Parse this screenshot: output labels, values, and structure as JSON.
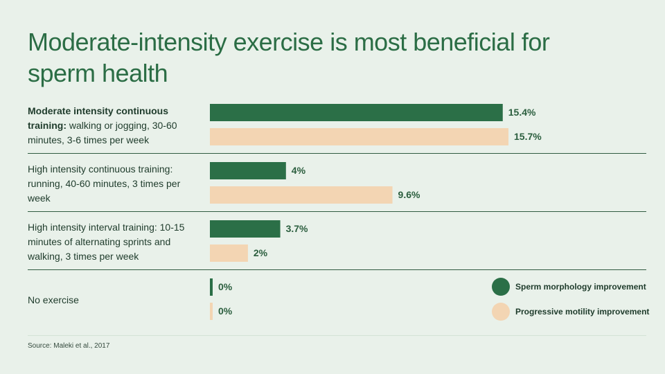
{
  "title": "Moderate-intensity exercise is most beneficial for sperm health",
  "rows": [
    {
      "label_bold": "Moderate intensity continuous training:",
      "label_rest": " walking or jogging, 30-60 minutes, 3-6 times per week"
    },
    {
      "label_bold": "",
      "label_rest": "High intensity continuous training: running, 40-60 minutes, 3 times per week"
    },
    {
      "label_bold": "",
      "label_rest": "High intensity interval training: 10-15 minutes of alternating sprints and walking, 3 times per week"
    },
    {
      "label_bold": "",
      "label_rest": "No exercise"
    }
  ],
  "legend": [
    {
      "label": "Sperm morphology improvement",
      "color": "#2b6f47"
    },
    {
      "label": "Progressive motility improvement",
      "color": "#f3d5b3"
    }
  ],
  "source": "Source: Maleki et al., 2017",
  "chart_data": {
    "type": "bar",
    "orientation": "horizontal",
    "title": "Moderate-intensity exercise is most beneficial for sperm health",
    "categories": [
      "Moderate intensity continuous training: walking or jogging, 30-60 minutes, 3-6 times per week",
      "High intensity continuous training: running, 40-60 minutes, 3 times per week",
      "High intensity interval training: 10-15 minutes of alternating sprints and walking, 3 times per week",
      "No exercise"
    ],
    "series": [
      {
        "name": "Sperm morphology improvement",
        "color": "#2b6f47",
        "values": [
          15.4,
          4,
          3.7,
          0
        ],
        "labels": [
          "15.4%",
          "4%",
          "3.7%",
          "0%"
        ]
      },
      {
        "name": "Progressive motility improvement",
        "color": "#f3d5b3",
        "values": [
          15.7,
          9.6,
          2,
          0
        ],
        "labels": [
          "15.7%",
          "9.6%",
          "2%",
          "0%"
        ]
      }
    ],
    "xlim": [
      0,
      15.7
    ],
    "grid": false,
    "legend_position": "bottom-right",
    "source": "Source: Maleki et al., 2017"
  }
}
